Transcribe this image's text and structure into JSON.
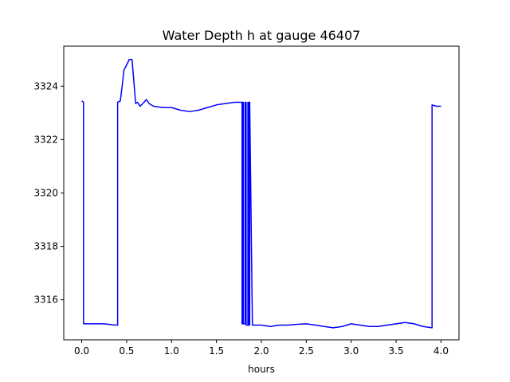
{
  "chart_data": {
    "type": "line",
    "title": "Water Depth h at gauge 46407",
    "xlabel": "hours",
    "ylabel": "",
    "xlim": [
      -0.2,
      4.2
    ],
    "ylim": [
      3314.5,
      3325.5
    ],
    "xticks": [
      0.0,
      0.5,
      1.0,
      1.5,
      2.0,
      2.5,
      3.0,
      3.5,
      4.0
    ],
    "xtick_labels": [
      "0.0",
      "0.5",
      "1.0",
      "1.5",
      "2.0",
      "2.5",
      "3.0",
      "3.5",
      "4.0"
    ],
    "yticks": [
      3316,
      3318,
      3320,
      3322,
      3324
    ],
    "ytick_labels": [
      "3316",
      "3318",
      "3320",
      "3322",
      "3324"
    ],
    "grid": false,
    "series": [
      {
        "color": "#0000ff",
        "x": [
          0.0,
          0.02,
          0.02,
          0.1,
          0.25,
          0.3,
          0.35,
          0.39,
          0.4,
          0.4,
          0.43,
          0.45,
          0.47,
          0.5,
          0.53,
          0.56,
          0.58,
          0.6,
          0.62,
          0.65,
          0.68,
          0.72,
          0.75,
          0.8,
          0.9,
          1.0,
          1.1,
          1.2,
          1.3,
          1.4,
          1.5,
          1.6,
          1.7,
          1.78,
          1.785,
          1.785,
          1.795,
          1.795,
          1.8,
          1.8,
          1.82,
          1.82,
          1.83,
          1.83,
          1.85,
          1.85,
          1.86,
          1.86,
          1.87,
          1.87,
          1.9,
          2.0,
          2.1,
          2.2,
          2.3,
          2.4,
          2.5,
          2.6,
          2.7,
          2.8,
          2.9,
          3.0,
          3.1,
          3.2,
          3.3,
          3.4,
          3.5,
          3.6,
          3.7,
          3.8,
          3.9,
          3.9,
          3.95,
          4.0
        ],
        "y": [
          3323.45,
          3323.4,
          3315.1,
          3315.1,
          3315.1,
          3315.08,
          3315.06,
          3315.05,
          3315.05,
          3323.4,
          3323.45,
          3324.0,
          3324.6,
          3324.8,
          3325.0,
          3325.0,
          3324.2,
          3323.35,
          3323.4,
          3323.25,
          3323.35,
          3323.5,
          3323.35,
          3323.25,
          3323.2,
          3323.2,
          3323.1,
          3323.05,
          3323.1,
          3323.2,
          3323.3,
          3323.35,
          3323.4,
          3323.4,
          3323.4,
          3315.1,
          3315.1,
          3323.4,
          3323.4,
          3315.1,
          3315.1,
          3323.4,
          3323.4,
          3315.05,
          3315.05,
          3323.4,
          3323.4,
          3315.05,
          3315.05,
          3323.4,
          3315.05,
          3315.05,
          3315.0,
          3315.05,
          3315.05,
          3315.08,
          3315.1,
          3315.05,
          3315.0,
          3314.95,
          3315.0,
          3315.1,
          3315.05,
          3315.0,
          3315.0,
          3315.05,
          3315.1,
          3315.15,
          3315.1,
          3315.0,
          3314.95,
          3323.3,
          3323.25,
          3323.25
        ]
      }
    ]
  }
}
